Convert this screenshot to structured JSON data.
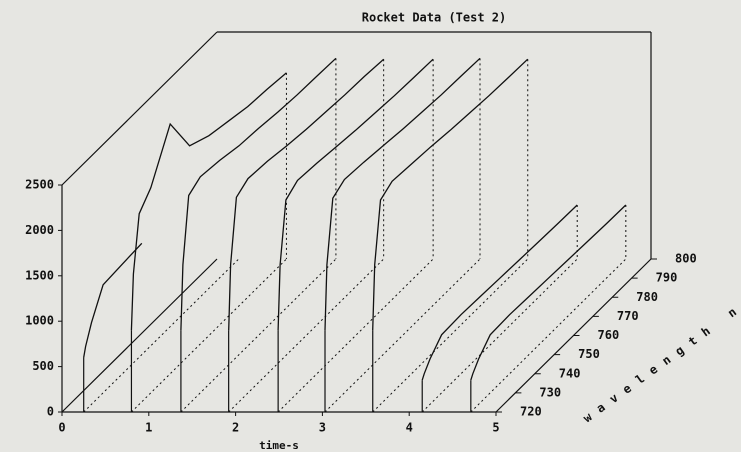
{
  "chart_data": {
    "type": "waterfall3d",
    "title": "Rocket Data (Test 2)",
    "xlabel": "time-s",
    "zlabel": "wavelength nm",
    "xlim": [
      0,
      5
    ],
    "xticks": [
      0,
      1,
      2,
      3,
      4,
      5
    ],
    "ylim": [
      0,
      2500
    ],
    "yticks": [
      0,
      500,
      1000,
      1500,
      2000,
      2500
    ],
    "zlim": [
      720,
      800
    ],
    "zticks": [
      720,
      730,
      740,
      750,
      760,
      770,
      780,
      790,
      800
    ],
    "z": [
      720,
      721,
      724,
      730,
      740,
      750,
      760,
      770,
      780,
      790,
      800
    ],
    "color": "#111111",
    "series": [
      {
        "t": 0.25,
        "values": [
          600,
          700,
          900,
          1190,
          1210,
          1226,
          null,
          null,
          null,
          null,
          null
        ]
      },
      {
        "t": 0.8,
        "values": [
          900,
          1500,
          2100,
          2258,
          2750,
          2300,
          2200,
          2150,
          2100,
          2080,
          2050
        ]
      },
      {
        "t": 1.37,
        "values": [
          900,
          1600,
          2300,
          2380,
          2350,
          2300,
          2280,
          2250,
          2230,
          2220,
          2210
        ]
      },
      {
        "t": 1.92,
        "values": [
          900,
          1600,
          2280,
          2360,
          2340,
          2300,
          2270,
          2250,
          2230,
          2220,
          2200
        ]
      },
      {
        "t": 2.49,
        "values": [
          900,
          1600,
          2250,
          2340,
          2320,
          2290,
          2260,
          2240,
          2220,
          2210,
          2200
        ]
      },
      {
        "t": 3.03,
        "values": [
          900,
          1600,
          2270,
          2350,
          2330,
          2300,
          2270,
          2250,
          2230,
          2220,
          2210
        ]
      },
      {
        "t": 3.58,
        "values": [
          900,
          1600,
          2250,
          2330,
          2310,
          2290,
          2260,
          2240,
          2220,
          2210,
          2200
        ]
      },
      {
        "t": 4.15,
        "values": [
          350,
          400,
          500,
          640,
          650,
          640,
          630,
          620,
          610,
          600,
          595
        ]
      },
      {
        "t": 4.71,
        "values": [
          350,
          400,
          500,
          640,
          650,
          640,
          630,
          620,
          610,
          600,
          595
        ]
      }
    ]
  }
}
